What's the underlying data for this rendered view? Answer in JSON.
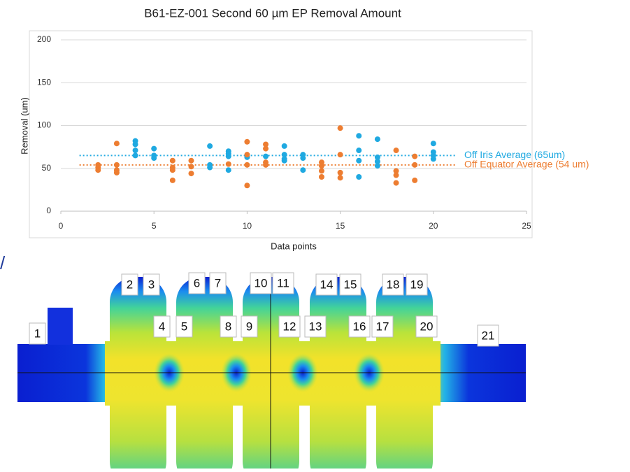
{
  "chart_data": {
    "type": "scatter",
    "title": "B61-EZ-001 Second 60 µm EP Removal Amount",
    "x_label": "Data points",
    "y_label": "Removal (um)",
    "xlim": [
      0,
      25
    ],
    "xticks": [
      0,
      5,
      10,
      15,
      20,
      25
    ],
    "ylim": [
      0,
      200
    ],
    "yticks": [
      0,
      50,
      100,
      150,
      200
    ],
    "grid": true,
    "series": [
      {
        "color": "#1fa9e1",
        "x": [
          4,
          4,
          4,
          4,
          5,
          5,
          5,
          8,
          8,
          8,
          9,
          9,
          9,
          9,
          10,
          11,
          12,
          12,
          12,
          12,
          13,
          13,
          13,
          16,
          16,
          16,
          16,
          17,
          17,
          17,
          17,
          20,
          20,
          20,
          20
        ],
        "values": [
          82,
          78,
          71,
          65,
          73,
          65,
          62,
          76,
          54,
          51,
          70,
          67,
          64,
          48,
          63,
          64,
          76,
          66,
          61,
          59,
          66,
          62,
          48,
          88,
          71,
          59,
          40,
          84,
          63,
          58,
          53,
          79,
          69,
          65,
          61
        ]
      },
      {
        "color": "#ed7d31",
        "x": [
          2,
          2,
          2,
          3,
          3,
          3,
          3,
          6,
          6,
          6,
          6,
          7,
          7,
          7,
          9,
          10,
          10,
          10,
          10,
          11,
          11,
          11,
          11,
          14,
          14,
          14,
          14,
          15,
          15,
          15,
          15,
          18,
          18,
          18,
          18,
          19,
          19,
          19
        ],
        "values": [
          54,
          51,
          48,
          79,
          54,
          48,
          45,
          59,
          51,
          48,
          36,
          59,
          52,
          44,
          55,
          81,
          66,
          54,
          30,
          78,
          73,
          57,
          54,
          57,
          53,
          47,
          40,
          97,
          66,
          45,
          39,
          71,
          47,
          42,
          33,
          64,
          54,
          36
        ]
      }
    ],
    "reference_lines": [
      {
        "value": 65,
        "label": "Off Iris Average (65um)",
        "color": "#1fa9e1",
        "x_range": [
          1,
          21.2
        ]
      },
      {
        "value": 54,
        "label": "Off Equator Average (54 um)",
        "color": "#ed7d31",
        "x_range": [
          1,
          21.2
        ]
      }
    ]
  },
  "diagram": {
    "labels": [
      "1",
      "2",
      "3",
      "4",
      "5",
      "6",
      "7",
      "8",
      "9",
      "10",
      "11",
      "12",
      "13",
      "14",
      "15",
      "16",
      "17",
      "18",
      "19",
      "20",
      "21"
    ]
  }
}
